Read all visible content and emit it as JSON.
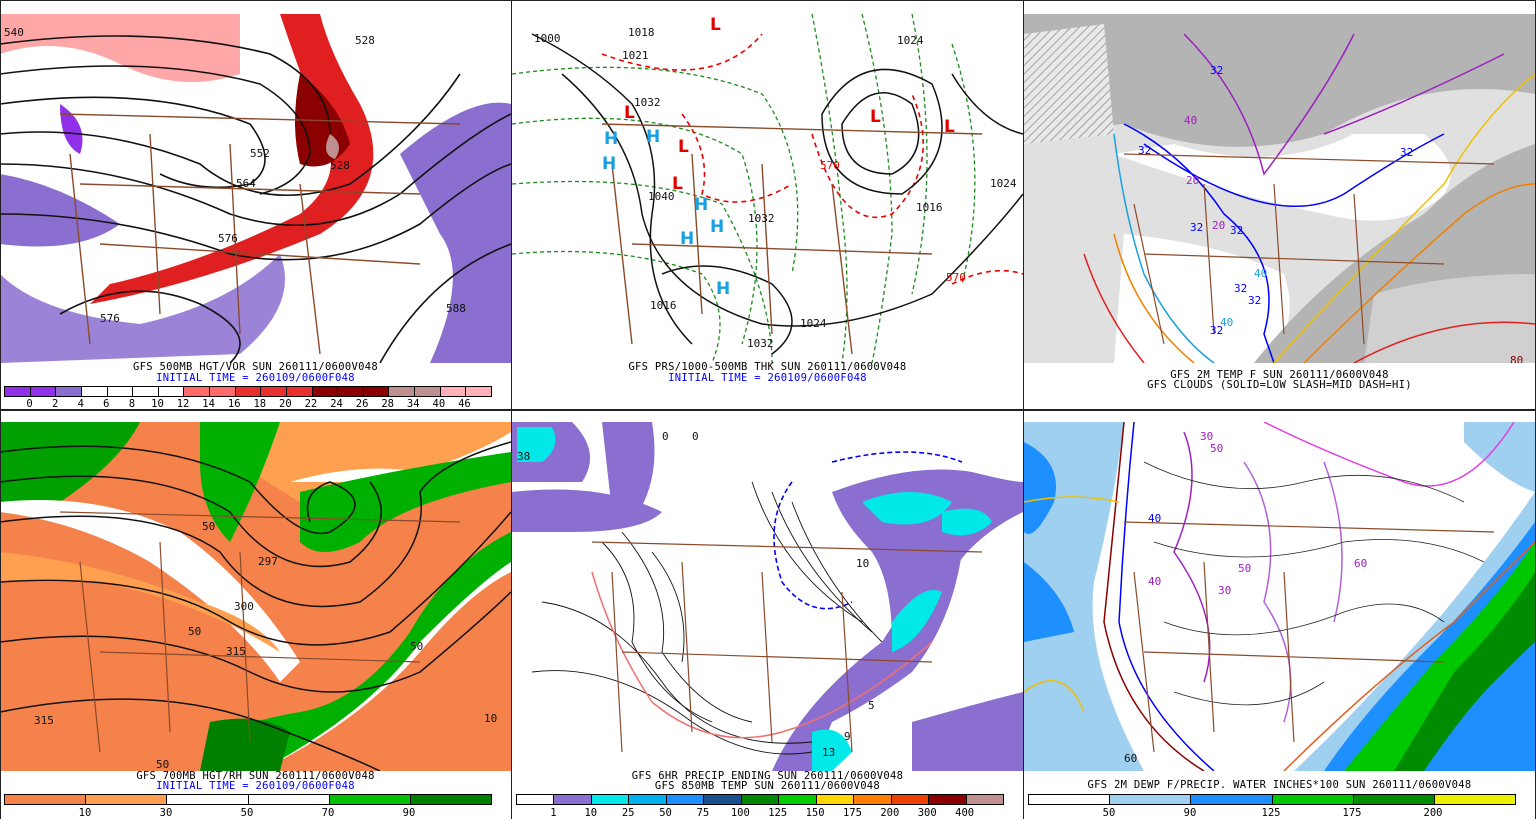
{
  "panels": [
    {
      "caption": [
        "GFS 500MB HGT/VOR SUN 260111/0600V048",
        "INITIAL TIME = 260109/0600F048"
      ],
      "contour_labels": [
        "540",
        "528",
        "552",
        "564",
        "576",
        "576",
        "588",
        "528"
      ],
      "colorbar": {
        "colors": [
          "#9030e8",
          "#9030e8",
          "#8a6fd0",
          "#ffffff",
          "#ffffff",
          "#ffffff",
          "#ffffff",
          "#ff6b6b",
          "#ff6b6b",
          "#e83030",
          "#e83030",
          "#e83030",
          "#8b0000",
          "#8b0000",
          "#8b0000",
          "#c09090",
          "#c09090",
          "#ffb0b8",
          "#ffb0b8"
        ],
        "labels": [
          "0",
          "2",
          "4",
          "6",
          "8",
          "10",
          "12",
          "14",
          "16",
          "18",
          "20",
          "22",
          "24",
          "26",
          "28",
          "34",
          "40",
          "46"
        ]
      }
    },
    {
      "caption": [
        "GFS PRS/1000-500MB THK SUN 260111/0600V048",
        "INITIAL TIME = 260109/0600F048"
      ],
      "contour_labels": [
        "1000",
        "1018",
        "1021",
        "1032",
        "1040",
        "1032",
        "1024",
        "1024",
        "1016",
        "1032",
        "570",
        "570",
        "1016",
        "1024"
      ],
      "highs": [
        "H",
        "H",
        "H",
        "H",
        "H",
        "H",
        "H"
      ],
      "lows": [
        "L",
        "L",
        "L",
        "L",
        "L",
        "L"
      ]
    },
    {
      "caption": [
        "GFS 2M TEMP F SUN 260111/0600V048",
        "GFS CLOUDS (SOLID=LOW SLASH=MID DASH=HI)"
      ],
      "contour_labels": [
        "32",
        "32",
        "32",
        "32",
        "32",
        "20",
        "20",
        "40",
        "40",
        "32",
        "32",
        "32",
        "40",
        "80"
      ]
    },
    {
      "caption": [
        "GFS 700MB HGT/RH SUN 260111/0600V048",
        "INITIAL TIME = 260109/0600F048"
      ],
      "contour_labels": [
        "315",
        "300",
        "297",
        "315",
        "50",
        "50",
        "50",
        "10",
        "50"
      ],
      "colorbar": {
        "colors": [
          "#f5824a",
          "#ffa050",
          "#ffffff",
          "#ffffff",
          "#00c000",
          "#008000"
        ],
        "labels": [
          "10",
          "30",
          "50",
          "70",
          "90"
        ]
      }
    },
    {
      "caption": [
        "GFS 6HR PRECIP ENDING SUN 260111/0600V048",
        "GFS 850MB TEMP SUN 260111/0600V048"
      ],
      "contour_labels": [
        "38",
        "0",
        "0",
        "10",
        "5",
        "9",
        "13"
      ],
      "colorbar": {
        "colors": [
          "#ffffff",
          "#8a6fd0",
          "#00e8e8",
          "#00b0f0",
          "#1e8fff",
          "#1a5090",
          "#008800",
          "#00cc00",
          "#ffd700",
          "#ff8000",
          "#ee4000",
          "#8b0000",
          "#c09090"
        ],
        "labels": [
          "1",
          "10",
          "25",
          "50",
          "75",
          "100",
          "125",
          "150",
          "175",
          "200",
          "300",
          "400"
        ]
      }
    },
    {
      "caption": [
        "GFS 2M DEWP F/PRECIP. WATER INCHES*100 SUN 260111/0600V048"
      ],
      "contour_labels": [
        "30",
        "50",
        "40",
        "30",
        "40",
        "50",
        "60",
        "60"
      ],
      "colorbar": {
        "colors": [
          "#ffffff",
          "#a0d0f0",
          "#1e8fff",
          "#00c800",
          "#008c00",
          "#eeee00"
        ],
        "labels": [
          "50",
          "90",
          "125",
          "175",
          "200"
        ]
      }
    }
  ]
}
